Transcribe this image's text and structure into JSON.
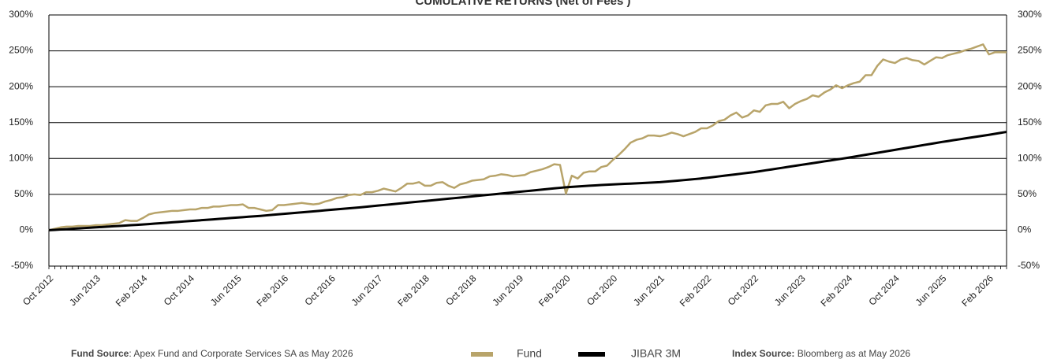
{
  "chart_data": {
    "type": "line",
    "title": "CUMULATIVE RETURNS (Net of Fees )",
    "categories": [
      "Oct 2012",
      null,
      null,
      null,
      null,
      null,
      null,
      null,
      "Jun 2013",
      null,
      null,
      null,
      null,
      null,
      null,
      null,
      "Feb 2014",
      null,
      null,
      null,
      null,
      null,
      null,
      null,
      "Oct 2014",
      null,
      null,
      null,
      null,
      null,
      null,
      null,
      "Jun 2015",
      null,
      null,
      null,
      null,
      null,
      null,
      null,
      "Feb 2016",
      null,
      null,
      null,
      null,
      null,
      null,
      null,
      "Oct 2016",
      null,
      null,
      null,
      null,
      null,
      null,
      null,
      "Jun 2017",
      null,
      null,
      null,
      null,
      null,
      null,
      null,
      "Feb 2018",
      null,
      null,
      null,
      null,
      null,
      null,
      null,
      "Oct 2018",
      null,
      null,
      null,
      null,
      null,
      null,
      null,
      "Jun 2019",
      null,
      null,
      null,
      null,
      null,
      null,
      null,
      "Feb 2020",
      null,
      null,
      null,
      null,
      null,
      null,
      null,
      "Oct 2020",
      null,
      null,
      null,
      null,
      null,
      null,
      null,
      "Jun 2021",
      null,
      null,
      null,
      null,
      null,
      null,
      null,
      "Feb 2022",
      null,
      null,
      null,
      null,
      null,
      null,
      null,
      "Oct 2022",
      null,
      null,
      null,
      null,
      null,
      null,
      null,
      "Jun 2023",
      null,
      null,
      null,
      null,
      null,
      null,
      null,
      "Feb 2024",
      null,
      null,
      null,
      null,
      null,
      null,
      null,
      "Oct 2024",
      null,
      null,
      null,
      null,
      null,
      null,
      null,
      "Jun 2025",
      null,
      null,
      null,
      null,
      null,
      null,
      null,
      "Feb 2026",
      null,
      null,
      null
    ],
    "series": [
      {
        "name": "Fund",
        "color": "#b8a46a",
        "values": [
          0,
          2,
          4,
          5,
          5,
          6,
          6,
          6,
          7,
          7,
          8,
          9,
          10,
          14,
          13,
          13,
          17,
          22,
          24,
          25,
          26,
          27,
          27,
          28,
          29,
          29,
          31,
          31,
          33,
          33,
          34,
          35,
          35,
          36,
          31,
          31,
          29,
          27,
          28,
          35,
          35,
          36,
          37,
          38,
          37,
          36,
          37,
          40,
          42,
          45,
          46,
          49,
          50,
          49,
          53,
          53,
          55,
          58,
          56,
          54,
          59,
          65,
          65,
          67,
          62,
          62,
          66,
          67,
          62,
          59,
          64,
          66,
          69,
          70,
          71,
          75,
          76,
          78,
          77,
          75,
          76,
          77,
          81,
          83,
          85,
          88,
          92,
          91,
          51,
          76,
          72,
          80,
          82,
          82,
          88,
          90,
          98,
          105,
          113,
          122,
          126,
          128,
          132,
          132,
          131,
          133,
          136,
          134,
          131,
          134,
          137,
          142,
          142,
          146,
          152,
          154,
          160,
          164,
          157,
          160,
          167,
          165,
          174,
          176,
          176,
          179,
          170,
          176,
          180,
          183,
          188,
          186,
          192,
          196,
          202,
          198,
          202,
          205,
          207,
          216,
          216,
          229,
          238,
          235,
          233,
          238,
          240,
          237,
          236,
          231,
          236,
          241,
          240,
          244,
          246,
          248,
          251,
          253,
          256,
          259,
          245,
          248,
          248,
          248
        ]
      },
      {
        "name": "JIBAR 3M",
        "color": "#000000",
        "values": [
          0,
          0.5,
          1,
          1.5,
          2,
          2.5,
          3,
          3.5,
          4,
          4.5,
          5,
          5.5,
          6,
          6.5,
          7,
          7.5,
          8,
          8.6,
          9.2,
          9.8,
          10.4,
          11,
          11.6,
          12.2,
          12.8,
          13.4,
          14,
          14.6,
          15.2,
          15.8,
          16.4,
          17,
          17.6,
          18.2,
          18.8,
          19.4,
          20,
          20.7,
          21.4,
          22.1,
          22.8,
          23.5,
          24.2,
          24.9,
          25.6,
          26.3,
          27,
          27.7,
          28.4,
          29.1,
          29.8,
          30.5,
          31.2,
          31.9,
          32.7,
          33.5,
          34.3,
          35.1,
          35.9,
          36.7,
          37.5,
          38.3,
          39.1,
          39.9,
          40.7,
          41.5,
          42.3,
          43.1,
          43.9,
          44.7,
          45.5,
          46.3,
          47.1,
          47.9,
          48.7,
          49.5,
          50.3,
          51.1,
          51.9,
          52.7,
          53.5,
          54.3,
          55.1,
          55.9,
          56.7,
          57.5,
          58.3,
          59.1,
          59.8,
          60.4,
          61,
          61.5,
          62,
          62.5,
          63,
          63.4,
          63.8,
          64.2,
          64.6,
          65,
          65.4,
          65.8,
          66.2,
          66.6,
          67,
          67.7,
          68.4,
          69.1,
          69.8,
          70.5,
          71.3,
          72.1,
          73,
          74,
          75,
          76,
          77,
          78,
          79,
          80,
          81,
          82.2,
          83.5,
          84.7,
          86,
          87.2,
          88.5,
          89.7,
          91,
          92.2,
          93.5,
          94.7,
          96,
          97.2,
          98.5,
          99.7,
          101,
          102.4,
          103.7,
          105.1,
          106.5,
          107.9,
          109.2,
          110.6,
          112,
          113.4,
          114.7,
          116.1,
          117.5,
          118.9,
          120.2,
          121.6,
          123,
          124.2,
          125.5,
          126.7,
          128,
          129.2,
          130.5,
          131.7,
          133,
          134.3,
          135.7,
          137
        ]
      }
    ],
    "ylim": [
      -50,
      300
    ],
    "yticks": [
      {
        "value": -50,
        "label": "-50%"
      },
      {
        "value": 0,
        "label": "0%"
      },
      {
        "value": 50,
        "label": "50%"
      },
      {
        "value": 100,
        "label": "100%"
      },
      {
        "value": 150,
        "label": "150%"
      },
      {
        "value": 200,
        "label": "200%"
      },
      {
        "value": 250,
        "label": "250%"
      },
      {
        "value": 300,
        "label": "300%"
      }
    ],
    "grid": true,
    "fund_source_label": "Fund Source",
    "fund_source_text": ": Apex Fund and Corporate Services SA as  May 2026",
    "index_source_label": "Index Source:",
    "index_source_text": " Bloomberg as at May 2026"
  }
}
